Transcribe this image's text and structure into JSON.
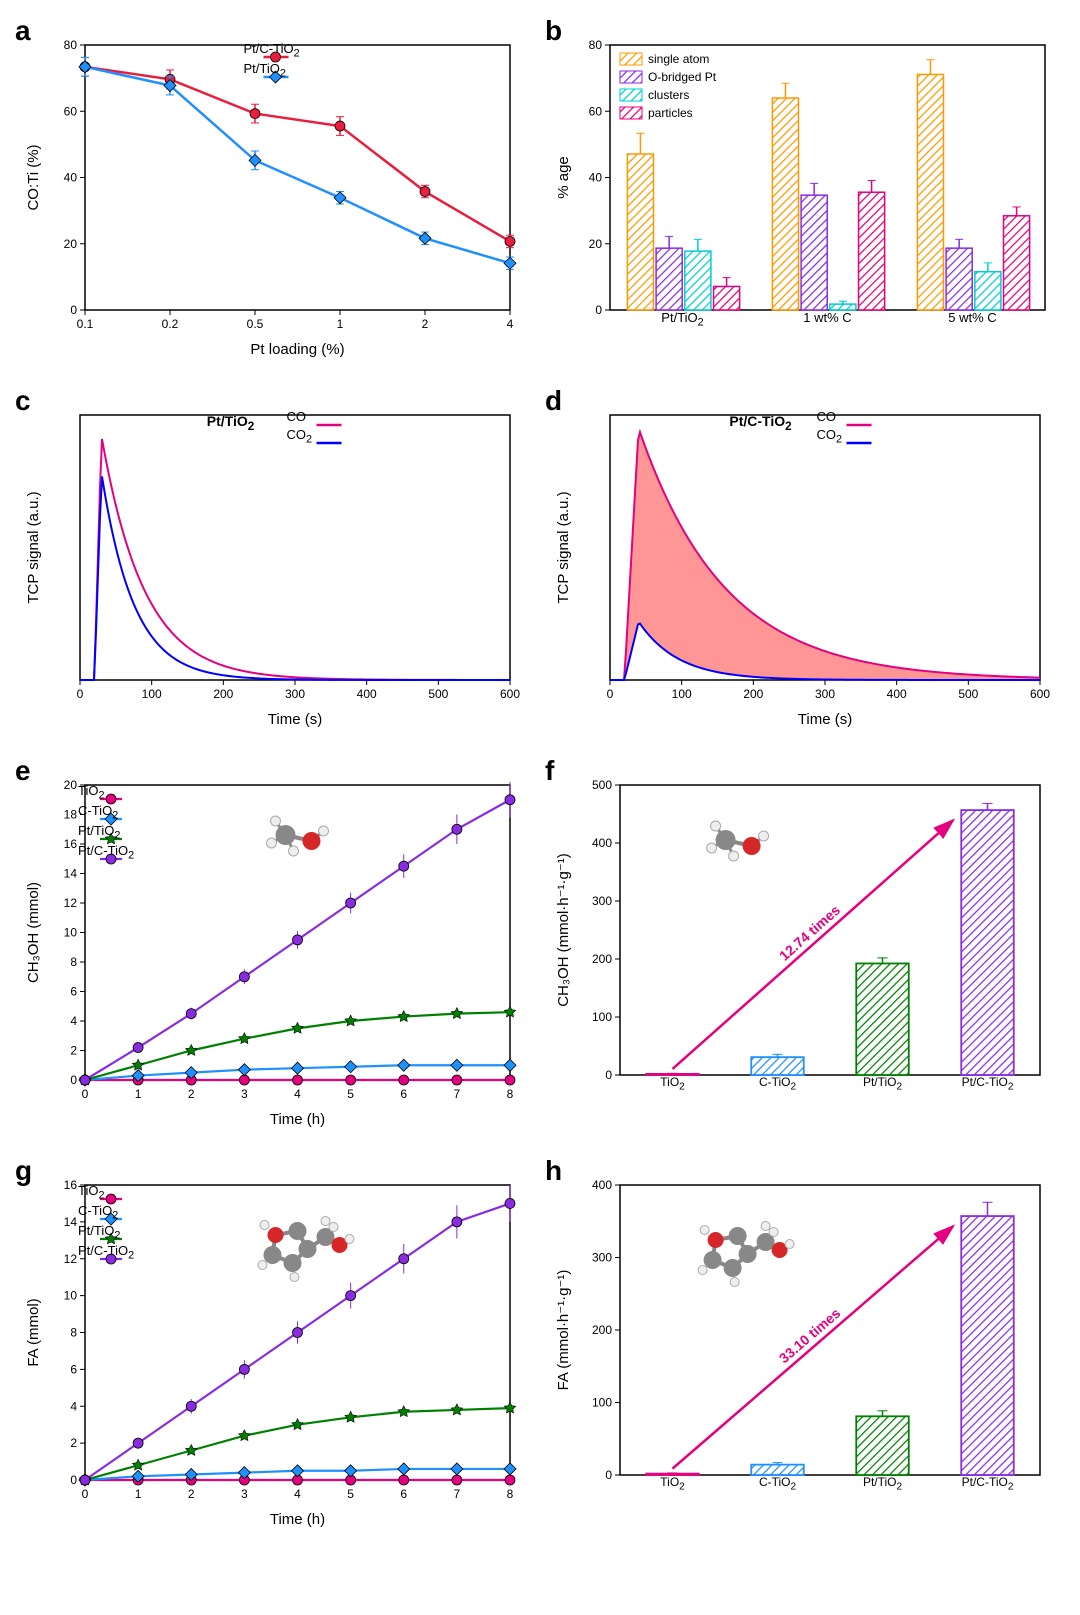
{
  "figure_width": 1080,
  "figure_height": 1615,
  "background_color": "#ffffff",
  "panels": {
    "a": {
      "label": "a",
      "type": "line",
      "xlabel": "Pt loading (%)",
      "ylabel": "CO:Ti (%)",
      "x_ticks": [
        0.1,
        0.2,
        0.5,
        1,
        2,
        4
      ],
      "y_ticks": [
        0,
        20,
        40,
        60,
        80
      ],
      "xlim": [
        0.08,
        4.5
      ],
      "ylim": [
        0,
        85
      ],
      "series": [
        {
          "name": "Pt/C-TiO₂",
          "color": "#e91e3c",
          "marker": "circle",
          "x": [
            0.1,
            0.2,
            0.5,
            1,
            2,
            4
          ],
          "y": [
            78,
            74,
            63,
            59,
            38,
            22
          ],
          "err": [
            3,
            3,
            3,
            3,
            2,
            2
          ]
        },
        {
          "name": "Pt/TiO₂",
          "color": "#1e90ff",
          "marker": "diamond",
          "x": [
            0.1,
            0.2,
            0.5,
            1,
            2,
            4
          ],
          "y": [
            78,
            72,
            48,
            36,
            23,
            15
          ],
          "err": [
            3,
            3,
            3,
            2,
            2,
            2
          ]
        }
      ],
      "grid": false,
      "legend_pos": "top-center"
    },
    "b": {
      "label": "b",
      "type": "bar",
      "xlabel": "",
      "ylabel": "% age",
      "x_groups": [
        "Pt/TiO₂",
        "1 wt% C",
        "5 wt% C"
      ],
      "y_ticks": [
        0,
        20,
        40,
        60,
        80
      ],
      "ylim": [
        0,
        90
      ],
      "categories": [
        "single atom",
        "O-bridged Pt",
        "clusters",
        "particles"
      ],
      "colors": [
        "#ff9800",
        "#8a2be2",
        "#00ced1",
        "#e4007f"
      ],
      "values": [
        [
          53,
          21,
          20,
          8
        ],
        [
          72,
          39,
          2,
          40
        ],
        [
          80,
          21,
          13,
          32
        ]
      ],
      "errors": [
        [
          7,
          4,
          4,
          3
        ],
        [
          5,
          4,
          1,
          4
        ],
        [
          5,
          3,
          3,
          3
        ]
      ],
      "legend_pos": "top-left"
    },
    "c": {
      "label": "c",
      "type": "line",
      "title": "Pt/TiO₂",
      "xlabel": "Time (s)",
      "ylabel": "TCP signal (a.u.)",
      "x_ticks": [
        0,
        100,
        200,
        300,
        400,
        500,
        600
      ],
      "xlim": [
        0,
        600
      ],
      "ylim": [
        0,
        1
      ],
      "y_hide_ticks": true,
      "series": [
        {
          "name": "CO",
          "color": "#e4007f"
        },
        {
          "name": "CO₂",
          "color": "#0000ff"
        }
      ],
      "curve_shape": "pulse-decay",
      "peak_x": 30,
      "legend_pos": "top-center"
    },
    "d": {
      "label": "d",
      "type": "line",
      "title": "Pt/C-TiO₂",
      "xlabel": "Time (s)",
      "ylabel": "TCP signal (a.u.)",
      "x_ticks": [
        0,
        100,
        200,
        300,
        400,
        500,
        600
      ],
      "xlim": [
        0,
        600
      ],
      "ylim": [
        0,
        1
      ],
      "y_hide_ticks": true,
      "series": [
        {
          "name": "CO",
          "color": "#e4007f"
        },
        {
          "name": "CO₂",
          "color": "#0000ff"
        }
      ],
      "shade_color": "#ff4040",
      "curve_shape": "pulse-decay-shaded",
      "peak_x": 40,
      "legend_pos": "top-center"
    },
    "e": {
      "label": "e",
      "type": "line",
      "xlabel": "Time (h)",
      "ylabel": "CH₃OH (mmol)",
      "x_ticks": [
        0,
        1,
        2,
        3,
        4,
        5,
        6,
        7,
        8
      ],
      "y_ticks": [
        0,
        2,
        4,
        6,
        8,
        10,
        12,
        14,
        16,
        18,
        20
      ],
      "xlim": [
        0,
        8
      ],
      "ylim": [
        0,
        20
      ],
      "molecule": "CH3OH",
      "series": [
        {
          "name": "TiO₂",
          "color": "#e4007f",
          "marker": "circle",
          "x": [
            0,
            1,
            2,
            3,
            4,
            5,
            6,
            7,
            8
          ],
          "y": [
            0,
            0,
            0,
            0,
            0,
            0,
            0,
            0,
            0
          ]
        },
        {
          "name": "C-TiO₂",
          "color": "#1e90ff",
          "marker": "diamond",
          "x": [
            0,
            1,
            2,
            3,
            4,
            5,
            6,
            7,
            8
          ],
          "y": [
            0,
            0.3,
            0.5,
            0.7,
            0.8,
            0.9,
            1,
            1,
            1
          ]
        },
        {
          "name": "Pt/TiO₂",
          "color": "#008000",
          "marker": "star",
          "x": [
            0,
            1,
            2,
            3,
            4,
            5,
            6,
            7,
            8
          ],
          "y": [
            0,
            1,
            2,
            2.8,
            3.5,
            4,
            4.3,
            4.5,
            4.6
          ]
        },
        {
          "name": "Pt/C-TiO₂",
          "color": "#8a2be2",
          "marker": "circle",
          "x": [
            0,
            1,
            2,
            3,
            4,
            5,
            6,
            7,
            8
          ],
          "y": [
            0,
            2.2,
            4.5,
            7,
            9.5,
            12,
            14.5,
            17,
            19
          ],
          "err": [
            0,
            0.3,
            0.4,
            0.5,
            0.6,
            0.7,
            0.8,
            1,
            1.2
          ]
        }
      ],
      "legend_pos": "top-left"
    },
    "f": {
      "label": "f",
      "type": "bar",
      "ylabel": "CH₃OH (mmol·h⁻¹·g⁻¹)",
      "x_labels": [
        "TiO₂",
        "C-TiO₂",
        "Pt/TiO₂",
        "Pt/C-TiO₂"
      ],
      "y_ticks": [
        0,
        100,
        200,
        300,
        400,
        500
      ],
      "ylim": [
        0,
        520
      ],
      "molecule": "CH3OH",
      "colors": [
        "#e4007f",
        "#1e90ff",
        "#008000",
        "#8a2be2"
      ],
      "values": [
        2,
        32,
        200,
        475
      ],
      "errors": [
        1,
        5,
        10,
        12
      ],
      "annotation": "12.74 times",
      "annotation_color": "#e4007f",
      "arrow_from": 0,
      "arrow_to": 3
    },
    "g": {
      "label": "g",
      "type": "line",
      "xlabel": "Time (h)",
      "ylabel": "FA (mmol)",
      "x_ticks": [
        0,
        1,
        2,
        3,
        4,
        5,
        6,
        7,
        8
      ],
      "y_ticks": [
        0,
        2,
        4,
        6,
        8,
        10,
        12,
        14,
        16
      ],
      "xlim": [
        0,
        8
      ],
      "ylim": [
        0,
        16
      ],
      "molecule": "FA",
      "series": [
        {
          "name": "TiO₂",
          "color": "#e4007f",
          "marker": "circle",
          "x": [
            0,
            1,
            2,
            3,
            4,
            5,
            6,
            7,
            8
          ],
          "y": [
            0,
            0,
            0,
            0,
            0,
            0,
            0,
            0,
            0
          ]
        },
        {
          "name": "C-TiO₂",
          "color": "#1e90ff",
          "marker": "diamond",
          "x": [
            0,
            1,
            2,
            3,
            4,
            5,
            6,
            7,
            8
          ],
          "y": [
            0,
            0.2,
            0.3,
            0.4,
            0.5,
            0.5,
            0.6,
            0.6,
            0.6
          ]
        },
        {
          "name": "Pt/TiO₂",
          "color": "#008000",
          "marker": "star",
          "x": [
            0,
            1,
            2,
            3,
            4,
            5,
            6,
            7,
            8
          ],
          "y": [
            0,
            0.8,
            1.6,
            2.4,
            3,
            3.4,
            3.7,
            3.8,
            3.9
          ]
        },
        {
          "name": "Pt/C-TiO₂",
          "color": "#8a2be2",
          "marker": "circle",
          "x": [
            0,
            1,
            2,
            3,
            4,
            5,
            6,
            7,
            8
          ],
          "y": [
            0,
            2,
            4,
            6,
            8,
            10,
            12,
            14,
            15
          ],
          "err": [
            0,
            0.3,
            0.4,
            0.5,
            0.6,
            0.7,
            0.8,
            0.9,
            1
          ]
        }
      ],
      "legend_pos": "top-left"
    },
    "h": {
      "label": "h",
      "type": "bar",
      "ylabel": "FA (mmol·h⁻¹·g⁻¹)",
      "x_labels": [
        "TiO₂",
        "C-TiO₂",
        "Pt/TiO₂",
        "Pt/C-TiO₂"
      ],
      "y_ticks": [
        0,
        100,
        200,
        300,
        400
      ],
      "ylim": [
        0,
        420
      ],
      "molecule": "FA",
      "colors": [
        "#e4007f",
        "#1e90ff",
        "#008000",
        "#8a2be2"
      ],
      "values": [
        2,
        15,
        85,
        375
      ],
      "errors": [
        1,
        3,
        8,
        20
      ],
      "annotation": "33.10 times",
      "annotation_color": "#e4007f",
      "arrow_from": 0,
      "arrow_to": 3
    }
  }
}
